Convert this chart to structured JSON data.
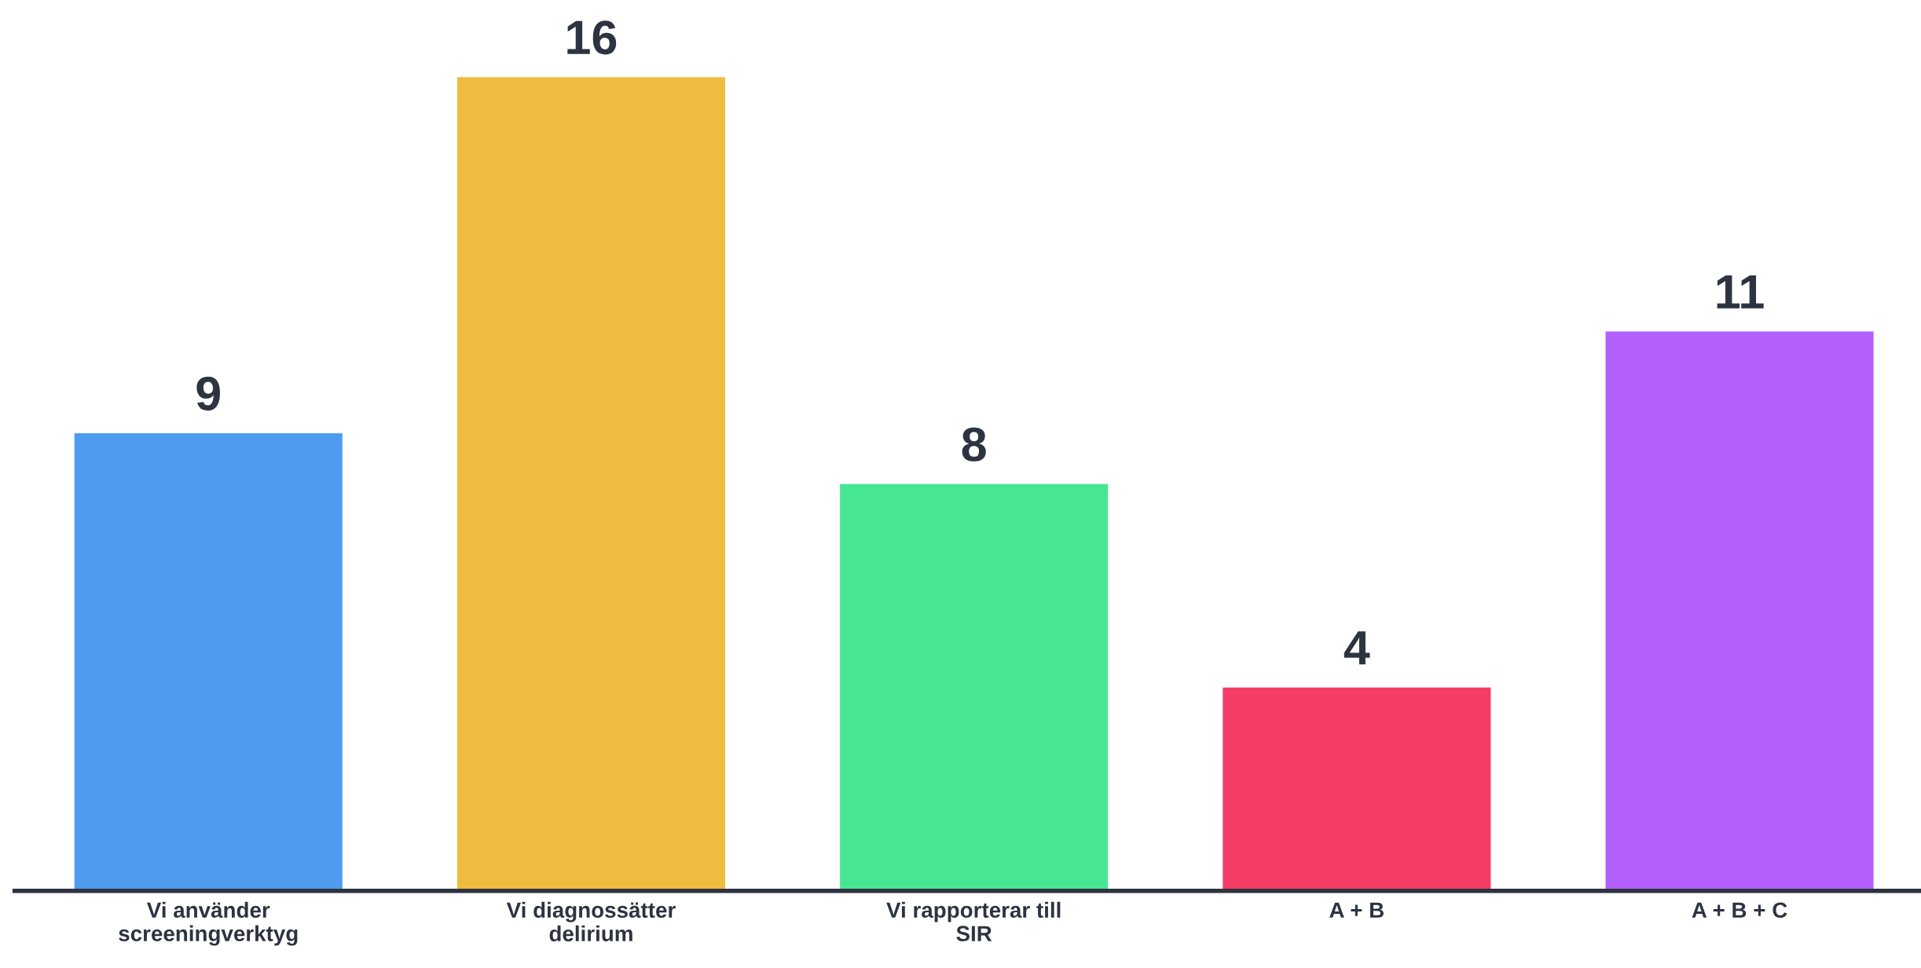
{
  "chart_data": {
    "type": "bar",
    "categories": [
      "Vi använder\nscreeningverktyg",
      "Vi diagnossätter\ndelirium",
      "Vi rapporterar till\nSIR",
      "A + B",
      "A + B + C"
    ],
    "values": [
      9,
      16,
      8,
      4,
      11
    ],
    "colors": [
      "#4f9bef",
      "#f0bc40",
      "#47e693",
      "#f43c66",
      "#b35ffc"
    ],
    "data_labels": true,
    "grid": false,
    "legend": false
  }
}
